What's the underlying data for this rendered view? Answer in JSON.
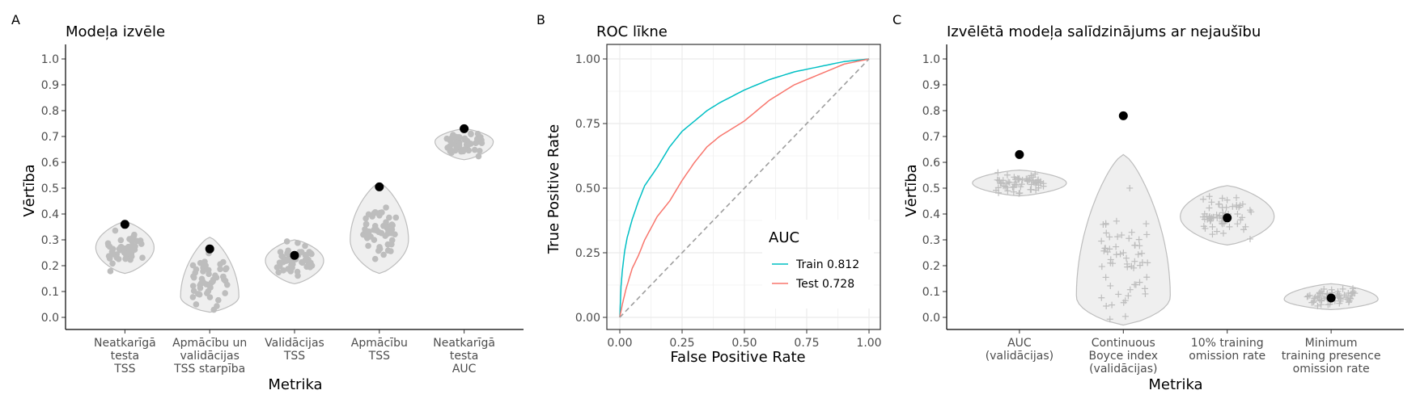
{
  "colors": {
    "violin_fill": "#efefef",
    "violin_stroke": "#bdbdbd",
    "jitter": "#bdbdbd",
    "highlight": "#000000",
    "train": "#00bfc4",
    "test": "#f8766d",
    "diagonal": "#9e9e9e",
    "grid": "#ebebeb"
  },
  "chart_data": [
    {
      "panel_tag": "A",
      "type": "violin",
      "title": "Modeļa izvēle",
      "xlabel": "Metrika",
      "ylabel": "Vērtība",
      "ylim": [
        0,
        1
      ],
      "yticks": [
        "0.0",
        "0.1",
        "0.2",
        "0.3",
        "0.4",
        "0.5",
        "0.6",
        "0.7",
        "0.8",
        "0.9",
        "1.0"
      ],
      "marker": "circle",
      "categories": [
        {
          "label": [
            "Neatkarīgā",
            "testa",
            "TSS"
          ],
          "lo": 0.17,
          "hi": 0.37,
          "mode": 0.27,
          "n": 50,
          "highlight": 0.36
        },
        {
          "label": [
            "Apmācību un",
            "validācijas",
            "TSS starpība"
          ],
          "lo": 0.02,
          "hi": 0.31,
          "mode": 0.08,
          "n": 50,
          "highlight": 0.265
        },
        {
          "label": [
            "Validācijas",
            "TSS"
          ],
          "lo": 0.13,
          "hi": 0.3,
          "mode": 0.22,
          "n": 50,
          "highlight": 0.24
        },
        {
          "label": [
            "Apmācību",
            "TSS"
          ],
          "lo": 0.17,
          "hi": 0.52,
          "mode": 0.3,
          "n": 50,
          "highlight": 0.505
        },
        {
          "label": [
            "Neatkarīgā",
            "testa",
            "AUC"
          ],
          "lo": 0.61,
          "hi": 0.73,
          "mode": 0.68,
          "n": 50,
          "highlight": 0.73
        }
      ]
    },
    {
      "panel_tag": "B",
      "type": "line",
      "title": "ROC līkne",
      "xlabel": "False Positive Rate",
      "ylabel": "True Positive Rate",
      "xlim": [
        0,
        1
      ],
      "ylim": [
        0,
        1
      ],
      "xticks": [
        "0.00",
        "0.25",
        "0.50",
        "0.75",
        "1.00"
      ],
      "yticks": [
        "0.00",
        "0.25",
        "0.50",
        "0.75",
        "1.00"
      ],
      "grid": true,
      "legend_title": "AUC",
      "legend_position": "bottom-right",
      "series": [
        {
          "name": "Train 0.812",
          "color": "#00bfc4",
          "x": [
            0,
            0.005,
            0.01,
            0.02,
            0.03,
            0.05,
            0.075,
            0.1,
            0.15,
            0.2,
            0.25,
            0.3,
            0.35,
            0.4,
            0.5,
            0.6,
            0.7,
            0.8,
            0.9,
            1
          ],
          "y": [
            0,
            0.12,
            0.18,
            0.26,
            0.31,
            0.38,
            0.45,
            0.51,
            0.58,
            0.66,
            0.72,
            0.76,
            0.8,
            0.83,
            0.88,
            0.92,
            0.95,
            0.97,
            0.99,
            1
          ]
        },
        {
          "name": "Test 0.728",
          "color": "#f8766d",
          "x": [
            0,
            0.01,
            0.025,
            0.05,
            0.075,
            0.1,
            0.15,
            0.2,
            0.25,
            0.3,
            0.35,
            0.4,
            0.5,
            0.6,
            0.7,
            0.8,
            0.9,
            1
          ],
          "y": [
            0,
            0.05,
            0.11,
            0.19,
            0.24,
            0.3,
            0.39,
            0.45,
            0.53,
            0.6,
            0.66,
            0.7,
            0.76,
            0.84,
            0.9,
            0.94,
            0.98,
            1
          ]
        },
        {
          "name": "",
          "color": "#9e9e9e",
          "dashed": true,
          "x": [
            0,
            1
          ],
          "y": [
            0,
            1
          ]
        }
      ]
    },
    {
      "panel_tag": "C",
      "type": "violin",
      "title": "Izvēlētā modeļa salīdzinājums ar nejaušību",
      "xlabel": "Metrika",
      "ylabel": "Vērtība",
      "ylim": [
        0,
        1
      ],
      "yticks": [
        "0.0",
        "0.1",
        "0.2",
        "0.3",
        "0.4",
        "0.5",
        "0.6",
        "0.7",
        "0.8",
        "0.9",
        "1.0"
      ],
      "marker": "plus",
      "categories": [
        {
          "label": [
            "AUC",
            "(validācijas)"
          ],
          "lo": 0.47,
          "hi": 0.57,
          "mode": 0.52,
          "n": 60,
          "highlight": 0.63
        },
        {
          "label": [
            "Continuous",
            "Boyce index",
            "(validācijas)"
          ],
          "lo": -0.03,
          "hi": 0.63,
          "mode": 0.08,
          "n": 60,
          "highlight": 0.78
        },
        {
          "label": [
            "10% training",
            "omission rate"
          ],
          "lo": 0.28,
          "hi": 0.51,
          "mode": 0.39,
          "n": 60,
          "highlight": 0.385
        },
        {
          "label": [
            "Minimum",
            "training presence",
            "omission rate"
          ],
          "lo": 0.03,
          "hi": 0.13,
          "mode": 0.07,
          "n": 60,
          "highlight": 0.075
        }
      ]
    }
  ]
}
